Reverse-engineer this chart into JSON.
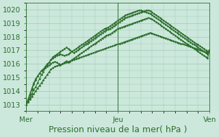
{
  "bg_color": "#cce8dc",
  "plot_bg_color": "#cce8dc",
  "grid_color": "#a0c8b0",
  "line_color": "#2d6e2d",
  "marker_color": "#2d6e2d",
  "ylim": [
    1012.5,
    1020.5
  ],
  "ylabel_ticks": [
    1013,
    1014,
    1015,
    1016,
    1017,
    1018,
    1019,
    1020
  ],
  "xlabel": "Pression niveau de la mer( hPa )",
  "xlabel_fontsize": 9,
  "tick_fontsize": 7.5,
  "day_labels": [
    "Mer",
    "Jeu",
    "Ven"
  ],
  "day_positions": [
    0,
    48,
    96
  ],
  "total_points": 97,
  "series": [
    [
      1013.0,
      1013.3,
      1013.7,
      1014.1,
      1014.5,
      1014.8,
      1015.1,
      1015.3,
      1015.5,
      1015.6,
      1015.8,
      1016.0,
      1016.1,
      1016.3,
      1016.5,
      1016.6,
      1016.7,
      1016.8,
      1016.9,
      1017.0,
      1017.1,
      1017.2,
      1017.1,
      1017.0,
      1016.9,
      1016.8,
      1016.9,
      1017.0,
      1017.1,
      1017.2,
      1017.3,
      1017.4,
      1017.5,
      1017.6,
      1017.7,
      1017.8,
      1017.9,
      1018.0,
      1018.1,
      1018.2,
      1018.3,
      1018.4,
      1018.5,
      1018.55,
      1018.6,
      1018.7,
      1018.8,
      1018.9,
      1019.0,
      1019.1,
      1019.2,
      1019.3,
      1019.4,
      1019.45,
      1019.5,
      1019.55,
      1019.6,
      1019.65,
      1019.7,
      1019.75,
      1019.8,
      1019.85,
      1019.9,
      1019.95,
      1019.95,
      1019.9,
      1019.8,
      1019.7,
      1019.6,
      1019.5,
      1019.4,
      1019.3,
      1019.2,
      1019.1,
      1019.0,
      1018.9,
      1018.8,
      1018.7,
      1018.6,
      1018.5,
      1018.4,
      1018.3,
      1018.2,
      1018.1,
      1018.0,
      1017.9,
      1017.8,
      1017.7,
      1017.6,
      1017.5,
      1017.4,
      1017.3,
      1017.2,
      1017.1,
      1017.0,
      1016.9,
      1017.0
    ],
    [
      1013.0,
      1013.2,
      1013.5,
      1013.8,
      1014.1,
      1014.3,
      1014.6,
      1014.9,
      1015.2,
      1015.4,
      1015.7,
      1015.9,
      1016.1,
      1016.3,
      1016.4,
      1016.5,
      1016.6,
      1016.65,
      1016.7,
      1016.65,
      1016.6,
      1016.65,
      1016.7,
      1016.8,
      1016.9,
      1017.0,
      1017.1,
      1017.2,
      1017.3,
      1017.4,
      1017.5,
      1017.6,
      1017.7,
      1017.8,
      1017.9,
      1018.0,
      1018.1,
      1018.2,
      1018.3,
      1018.4,
      1018.5,
      1018.6,
      1018.65,
      1018.7,
      1018.8,
      1018.9,
      1019.0,
      1019.1,
      1019.2,
      1019.3,
      1019.4,
      1019.5,
      1019.6,
      1019.65,
      1019.7,
      1019.75,
      1019.8,
      1019.85,
      1019.9,
      1019.95,
      1019.95,
      1019.9,
      1019.85,
      1019.8,
      1019.75,
      1019.7,
      1019.6,
      1019.5,
      1019.4,
      1019.3,
      1019.2,
      1019.1,
      1019.0,
      1018.9,
      1018.8,
      1018.7,
      1018.6,
      1018.5,
      1018.4,
      1018.3,
      1018.2,
      1018.1,
      1018.0,
      1017.9,
      1017.8,
      1017.7,
      1017.6,
      1017.5,
      1017.4,
      1017.3,
      1017.2,
      1017.1,
      1017.0,
      1016.9,
      1016.8,
      1016.7,
      1017.0
    ],
    [
      1013.0,
      1013.4,
      1013.8,
      1014.2,
      1014.6,
      1014.9,
      1015.1,
      1015.3,
      1015.5,
      1015.6,
      1015.7,
      1015.8,
      1015.9,
      1016.0,
      1016.1,
      1016.15,
      1016.1,
      1016.0,
      1015.9,
      1016.0,
      1016.1,
      1016.2,
      1016.1,
      1016.15,
      1016.3,
      1016.4,
      1016.5,
      1016.6,
      1016.7,
      1016.8,
      1016.9,
      1017.0,
      1017.1,
      1017.2,
      1017.3,
      1017.4,
      1017.5,
      1017.6,
      1017.7,
      1017.8,
      1017.9,
      1018.0,
      1018.1,
      1018.15,
      1018.2,
      1018.3,
      1018.4,
      1018.5,
      1018.6,
      1018.65,
      1018.7,
      1018.75,
      1018.8,
      1018.85,
      1018.9,
      1018.95,
      1019.0,
      1019.05,
      1019.1,
      1019.15,
      1019.2,
      1019.25,
      1019.3,
      1019.35,
      1019.4,
      1019.35,
      1019.3,
      1019.2,
      1019.1,
      1019.0,
      1018.9,
      1018.8,
      1018.7,
      1018.6,
      1018.5,
      1018.4,
      1018.3,
      1018.2,
      1018.1,
      1018.0,
      1017.9,
      1017.8,
      1017.7,
      1017.6,
      1017.5,
      1017.4,
      1017.3,
      1017.2,
      1017.1,
      1017.0,
      1016.9,
      1016.8,
      1016.7,
      1016.6,
      1016.5,
      1016.4,
      1017.0
    ],
    [
      1013.0,
      1013.2,
      1013.4,
      1013.6,
      1013.8,
      1014.0,
      1014.2,
      1014.4,
      1014.6,
      1014.8,
      1015.0,
      1015.2,
      1015.4,
      1015.6,
      1015.7,
      1015.8,
      1015.85,
      1015.9,
      1015.95,
      1016.0,
      1016.05,
      1016.1,
      1016.15,
      1016.2,
      1016.25,
      1016.3,
      1016.35,
      1016.4,
      1016.45,
      1016.5,
      1016.55,
      1016.6,
      1016.65,
      1016.7,
      1016.75,
      1016.8,
      1016.85,
      1016.9,
      1016.95,
      1017.0,
      1017.05,
      1017.1,
      1017.15,
      1017.2,
      1017.25,
      1017.3,
      1017.35,
      1017.4,
      1017.45,
      1017.5,
      1017.55,
      1017.6,
      1017.65,
      1017.7,
      1017.75,
      1017.8,
      1017.85,
      1017.9,
      1017.95,
      1018.0,
      1018.05,
      1018.1,
      1018.15,
      1018.2,
      1018.25,
      1018.3,
      1018.25,
      1018.2,
      1018.15,
      1018.1,
      1018.05,
      1018.0,
      1017.95,
      1017.9,
      1017.85,
      1017.8,
      1017.75,
      1017.7,
      1017.65,
      1017.6,
      1017.55,
      1017.5,
      1017.45,
      1017.4,
      1017.35,
      1017.3,
      1017.25,
      1017.2,
      1017.15,
      1017.1,
      1017.05,
      1017.0,
      1016.95,
      1016.9,
      1016.85,
      1016.8,
      1017.0
    ]
  ]
}
